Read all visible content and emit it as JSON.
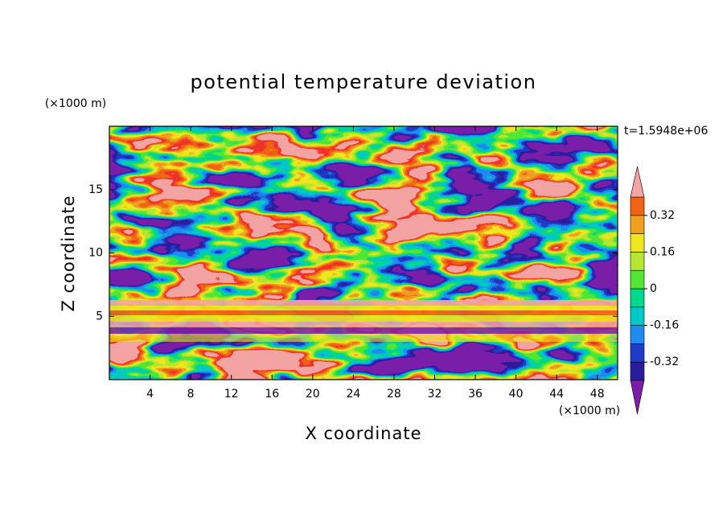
{
  "chart_data": {
    "type": "contour",
    "title": "potential temperature deviation",
    "xlabel": "X coordinate",
    "ylabel": "Z coordinate",
    "x_unit": "(×1000 m)",
    "y_unit": "(×1000 m)",
    "time_label": "t=1.5948e+06",
    "xlim": [
      0,
      50
    ],
    "ylim": [
      0,
      20
    ],
    "xticks": [
      4,
      8,
      12,
      16,
      20,
      24,
      28,
      32,
      36,
      40,
      44,
      48
    ],
    "yticks": [
      5,
      10,
      15
    ],
    "colorbar": {
      "levels": [
        -0.4,
        -0.32,
        -0.24,
        -0.16,
        -0.08,
        0,
        0.08,
        0.16,
        0.24,
        0.32,
        0.4
      ],
      "ticks": [
        -0.32,
        -0.16,
        0,
        0.16,
        0.32
      ],
      "colors": [
        "#7a1ea8",
        "#2a1c9c",
        "#1e3cc8",
        "#1e8cf0",
        "#00c8c8",
        "#00d88c",
        "#50e632",
        "#b4e632",
        "#f0e61e",
        "#f0a020",
        "#f06414",
        "#f03228",
        "#f4a4a4"
      ]
    }
  }
}
